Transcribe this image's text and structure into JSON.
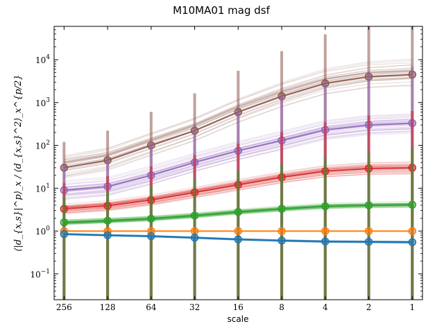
{
  "chart_data": {
    "type": "line",
    "title": "M10MA01 mag dsf",
    "xlabel": "scale",
    "ylabel": "⟨|d_{x,s}|^p⟩_x / ⟨d_{x,s}^2⟩_x^{p/2}",
    "x_scale": "log",
    "x_reversed": true,
    "y_scale": "log",
    "xlim": [
      300,
      0.85
    ],
    "ylim": [
      0.025,
      60000
    ],
    "grid": false,
    "x": [
      256,
      128,
      64,
      32,
      16,
      8,
      4,
      2,
      1
    ],
    "x_tick_labels": [
      "256",
      "128",
      "64",
      "32",
      "16",
      "8",
      "4",
      "2",
      "1"
    ],
    "y_tick_labels": [
      {
        "value": 0.1,
        "label": "10",
        "exp": "−1"
      },
      {
        "value": 1,
        "label": "10",
        "exp": "0"
      },
      {
        "value": 10,
        "label": "10",
        "exp": "1"
      },
      {
        "value": 100,
        "label": "10",
        "exp": "2"
      },
      {
        "value": 1000,
        "label": "10",
        "exp": "3"
      },
      {
        "value": 10000,
        "label": "10",
        "exp": "4"
      }
    ],
    "series": [
      {
        "color": "#1f77b4",
        "values": [
          0.85,
          0.8,
          0.76,
          0.7,
          0.64,
          0.6,
          0.57,
          0.56,
          0.55
        ],
        "spread": 0.02
      },
      {
        "color": "#ff7f0e",
        "values": [
          1.0,
          1.0,
          1.0,
          1.0,
          1.0,
          1.0,
          1.0,
          1.0,
          1.0
        ],
        "spread": 0.0
      },
      {
        "color": "#2ca02c",
        "values": [
          1.6,
          1.75,
          1.95,
          2.3,
          2.8,
          3.3,
          3.8,
          4.0,
          4.1
        ],
        "spread": 0.06
      },
      {
        "color": "#d62728",
        "values": [
          3.3,
          3.9,
          5.3,
          8.0,
          12.0,
          18.0,
          25.0,
          29.0,
          30.0
        ],
        "spread": 0.12
      },
      {
        "color": "#9467bd",
        "values": [
          9.0,
          11.0,
          20.0,
          40.0,
          75.0,
          130.0,
          230.0,
          300.0,
          330.0
        ],
        "spread": 0.22
      },
      {
        "color": "#8c564b",
        "values": [
          30.0,
          45.0,
          100.0,
          220.0,
          600.0,
          1400.0,
          2800.0,
          4000.0,
          4500.0
        ],
        "spread": 0.3
      }
    ]
  }
}
